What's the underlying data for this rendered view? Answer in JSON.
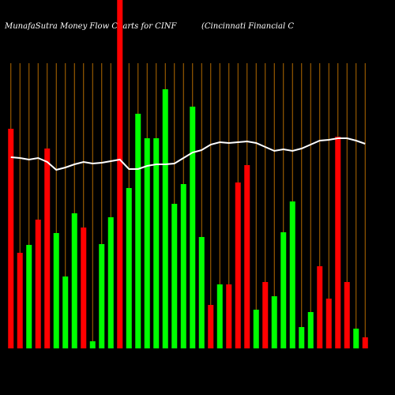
{
  "chart_data": {
    "type": "bar",
    "title": "MunafaSutra  Money Flow  Charts for CINF",
    "subtitle": "(Cincinnati   Financial C",
    "values": [
      278,
      121,
      131,
      163,
      253,
      146,
      91,
      171,
      153,
      9,
      132,
      166,
      441,
      203,
      297,
      266,
      266,
      328,
      183,
      208,
      306,
      141,
      55,
      81,
      81,
      210,
      232,
      49,
      84,
      66,
      147,
      186,
      27,
      46,
      104,
      63,
      268,
      84,
      25,
      14
    ],
    "colors": [
      "#ff0000",
      "#ff0000",
      "#00ff00",
      "#ff0000",
      "#ff0000",
      "#00ff00",
      "#00ff00",
      "#00ff00",
      "#ff0000",
      "#00ff00",
      "#00ff00",
      "#00ff00",
      "#ff0000",
      "#00ff00",
      "#00ff00",
      "#00ff00",
      "#00ff00",
      "#00ff00",
      "#00ff00",
      "#00ff00",
      "#00ff00",
      "#00ff00",
      "#ff0000",
      "#00ff00",
      "#ff0000",
      "#ff0000",
      "#ff0000",
      "#00ff00",
      "#ff0000",
      "#00ff00",
      "#00ff00",
      "#00ff00",
      "#00ff00",
      "#00ff00",
      "#ff0000",
      "#ff0000",
      "#ff0000",
      "#ff0000",
      "#00ff00",
      "#ff0000"
    ],
    "line_values": [
      242,
      241,
      239,
      241,
      236,
      226,
      229,
      233,
      236,
      234,
      235,
      237,
      239,
      227,
      227,
      231,
      233,
      233,
      234,
      241,
      248,
      251,
      258,
      261,
      260,
      261,
      262,
      260,
      255,
      250,
      252,
      250,
      253,
      258,
      263,
      264,
      266,
      266,
      263,
      259
    ],
    "line_color": "#ffffff",
    "ylim": [
      0,
      441
    ]
  }
}
